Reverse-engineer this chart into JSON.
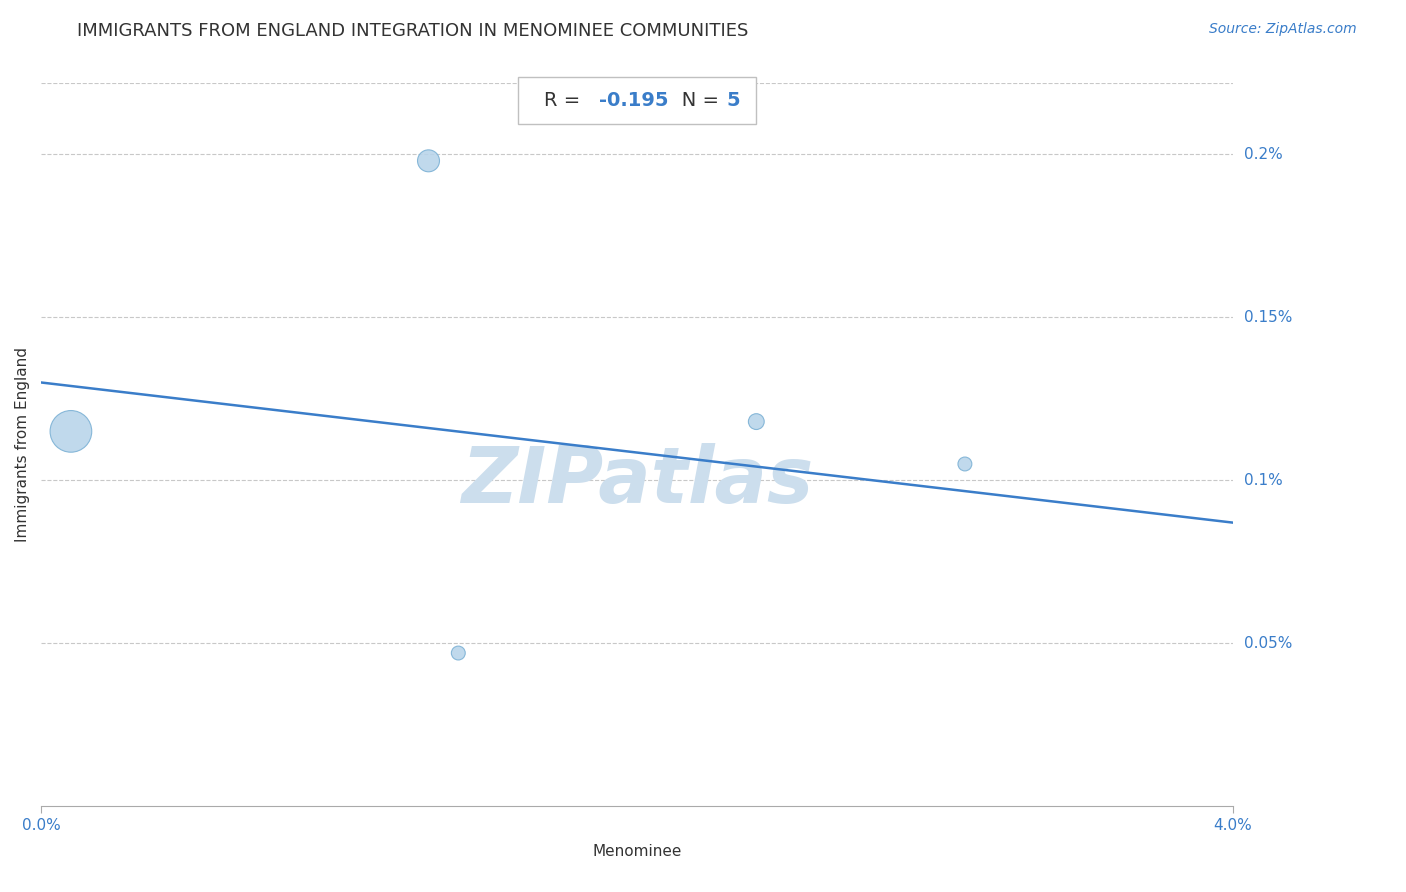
{
  "title": "IMMIGRANTS FROM ENGLAND INTEGRATION IN MENOMINEE COMMUNITIES",
  "source": "Source: ZipAtlas.com",
  "xlabel": "Menominee",
  "ylabel": "Immigrants from England",
  "x_min": 0.0,
  "x_max": 0.04,
  "y_min": 0.0,
  "y_max": 0.00222,
  "x_ticks": [
    0.0,
    0.04
  ],
  "x_tick_labels": [
    "0.0%",
    "4.0%"
  ],
  "y_tick_positions": [
    0.0005,
    0.001,
    0.0015,
    0.002
  ],
  "y_tick_labels": [
    "0.05%",
    "0.1%",
    "0.15%",
    "0.2%"
  ],
  "scatter_x": [
    0.001,
    0.013,
    0.024,
    0.031,
    0.014
  ],
  "scatter_y": [
    0.00115,
    0.00198,
    0.00118,
    0.00105,
    0.00047
  ],
  "scatter_sizes": [
    900,
    250,
    130,
    100,
    100
  ],
  "scatter_color": "#b8d4ea",
  "scatter_edge_color": "#7ab0d4",
  "line_x0": 0.0,
  "line_y0": 0.0013,
  "line_x1": 0.04,
  "line_y1": 0.00087,
  "line_color": "#3a7dc9",
  "line_width": 1.8,
  "r_value": "-0.195",
  "n_value": "5",
  "blue_color": "#3a7dc9",
  "dark_color": "#333333",
  "grid_color": "#c8c8c8",
  "watermark_color": "#ccdeed",
  "background_color": "#ffffff",
  "title_fontsize": 13,
  "axis_label_fontsize": 11,
  "tick_fontsize": 11,
  "source_fontsize": 10
}
